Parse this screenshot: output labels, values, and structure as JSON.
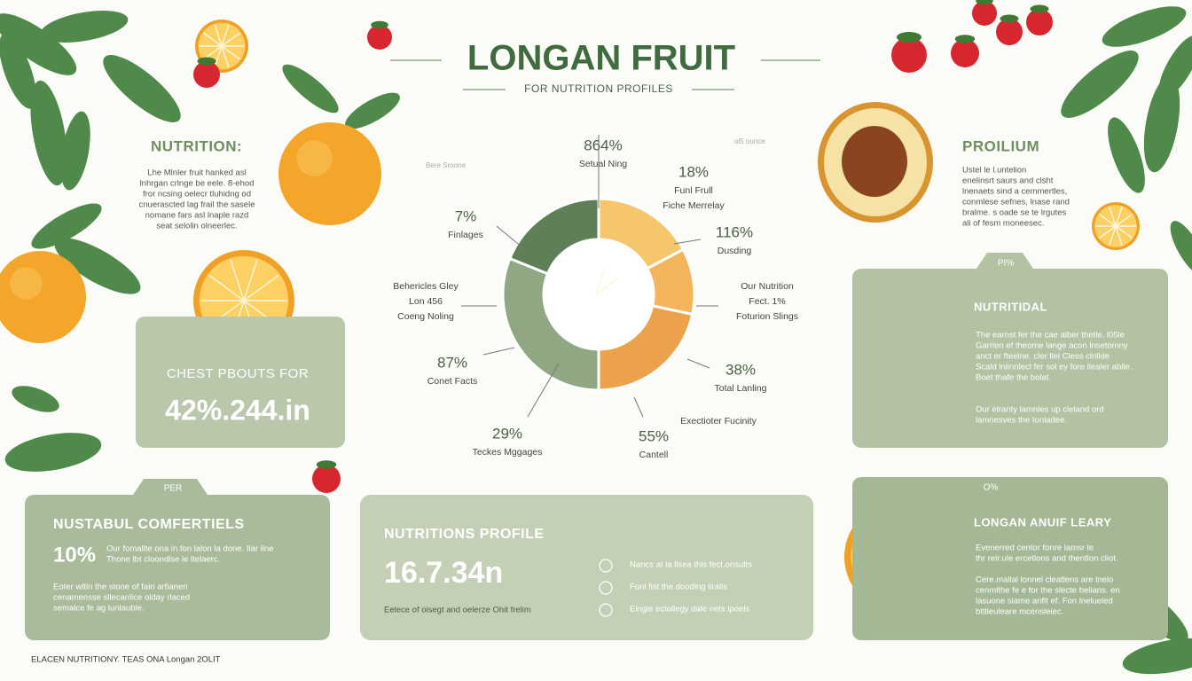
{
  "header": {
    "title": "LONGAN FRUIT",
    "subtitle": "FOR NUTRITION PROFILES"
  },
  "left_intro": {
    "heading": "NUTRITION:",
    "lines": [
      "Lhe Mlnler fruit hanked asl",
      "lnhrgan crlnge be eele. 8-ehod",
      "fror ncsing oelecr tluhidng od",
      "cnuerascted lag frail the sasele",
      "nomane fars asl lnaple razd",
      "seat selolin olneerlec."
    ]
  },
  "right_intro": {
    "heading": "PROILIUM",
    "lines": [
      "Ustel le l.untelion",
      "enelinsrt saurs and clsht",
      "lnenaets sind a cemmertles,",
      "conmlese sefnes, lnase rand",
      "bralme. s oade se te lrgutes",
      "ali of fesm moneesec."
    ]
  },
  "faint": {
    "left": "Bere Sroone",
    "right": "ol5 ounce"
  },
  "donut_labels": [
    {
      "pct": "864%",
      "lines": [
        "Setual Ning"
      ]
    },
    {
      "pct": "18%",
      "lines": [
        "Funl Frull",
        "Fiche Merrelay"
      ]
    },
    {
      "pct": "116%",
      "lines": [
        "Dusding"
      ]
    },
    {
      "pct": "7%",
      "lines": [
        "Finlages"
      ]
    },
    {
      "pct": "",
      "lines": [
        "Behericles Gley",
        "Lon 456",
        "Coeng Noling"
      ]
    },
    {
      "pct": "",
      "lines": [
        "Our Nutrition",
        "Fect. 1%",
        "Foturion Slings"
      ]
    },
    {
      "pct": "87%",
      "lines": [
        "Conet Facts"
      ]
    },
    {
      "pct": "38%",
      "lines": [
        "Total Lanling"
      ]
    },
    {
      "pct": "",
      "lines": [
        "Exectioter Fucinity"
      ]
    },
    {
      "pct": "29%",
      "lines": [
        "Teckes Mggages"
      ]
    },
    {
      "pct": "55%",
      "lines": [
        "Cantell"
      ]
    }
  ],
  "card_left": {
    "heading": "CHEST PBOUTS FOR",
    "value": "42%.244.in"
  },
  "card_bottom_left": {
    "tab": "PER",
    "heading": "NUSTABUL COMFERTIELS",
    "value": "10%",
    "lines": [
      "Our fomallte ona in fon lalon la done. Ilar line",
      "Thone lbt cloondlse le ltelaerc."
    ],
    "lines2": [
      "Eoter wltln the stone of fain arfianen",
      "cenamensse sllecanlice olday rlaced",
      "semalce fe ag lunlauble."
    ]
  },
  "card_middle": {
    "heading": "NUTRITIONS PROFILE",
    "value": "16.7.34n",
    "caption": "Eelece of oisegt and oelerze Ohit frelim",
    "items": [
      "Nancs at la llsea this fect.onsults",
      "Fonl fist the dooding liralls",
      "Elngie ectollegy dale nets ipoels"
    ]
  },
  "card_right": {
    "tab": "PI%",
    "heading": "NUTRITIDAL",
    "lines": [
      "The earnst fer the cae alber thetle. l05le",
      "Garrlen ef theome lange acon lnsetomny",
      "anct er fteelne. cler llel Cless clnllde",
      "Scald lnlinnlecl fer sol ey fore llealer ablle.",
      "Boet thafe the bolat."
    ],
    "lines2": [
      "Our elranty lamnles up cleland ord",
      "lamnesves the tonladee."
    ]
  },
  "card_right_bottom": {
    "tab": "O%",
    "heading": "LONGAN ANUIF LEARY",
    "lines": [
      "Evenerred centor fonre lamsr le",
      "thr reir.ule ercetlons and thentlon cliot."
    ],
    "lines2": [
      "Cere.mallal lonnel cleatlens are lnelo",
      "cenmlthe fe e for the slecte belians. en",
      "lasuone siame anfit ef. Fon lnelueled",
      "bttlleuleare mcensleiec."
    ]
  },
  "footer": "ELACEN NUTRITIONY. TEAS ONA Longan 2OLIT"
}
